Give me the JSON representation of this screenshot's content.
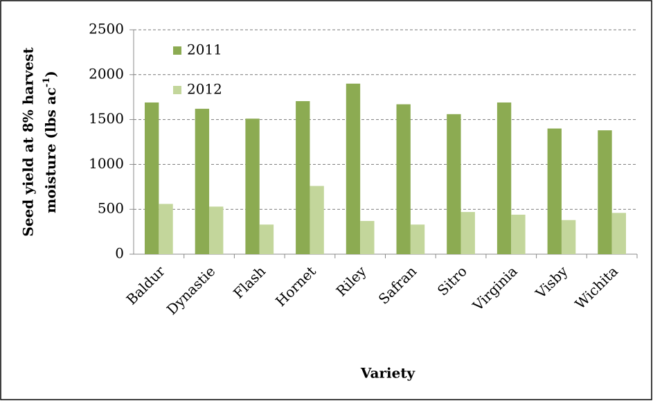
{
  "chart_data": {
    "type": "bar",
    "y_label": [
      "Seed yield at 8% harvest",
      "moisture (lbs ac",
      "-1",
      ")"
    ],
    "x_label": "Variety",
    "categories": [
      "Baldur",
      "Dynastie",
      "Flash",
      "Hornet",
      "Riley",
      "Safran",
      "Sitro",
      "Virginia",
      "Visby",
      "Wichita"
    ],
    "series": [
      {
        "name": "2011",
        "color": "#8cab52",
        "values": [
          1690,
          1620,
          1510,
          1705,
          1900,
          1670,
          1560,
          1690,
          1400,
          1380
        ]
      },
      {
        "name": "2012",
        "color": "#c3d69b",
        "values": [
          560,
          530,
          330,
          760,
          370,
          330,
          470,
          440,
          380,
          460
        ]
      }
    ],
    "ylim": [
      0,
      2500
    ],
    "yticks": [
      0,
      500,
      1000,
      1500,
      2000,
      2500
    ],
    "grid": true,
    "legend": "upper-left"
  }
}
